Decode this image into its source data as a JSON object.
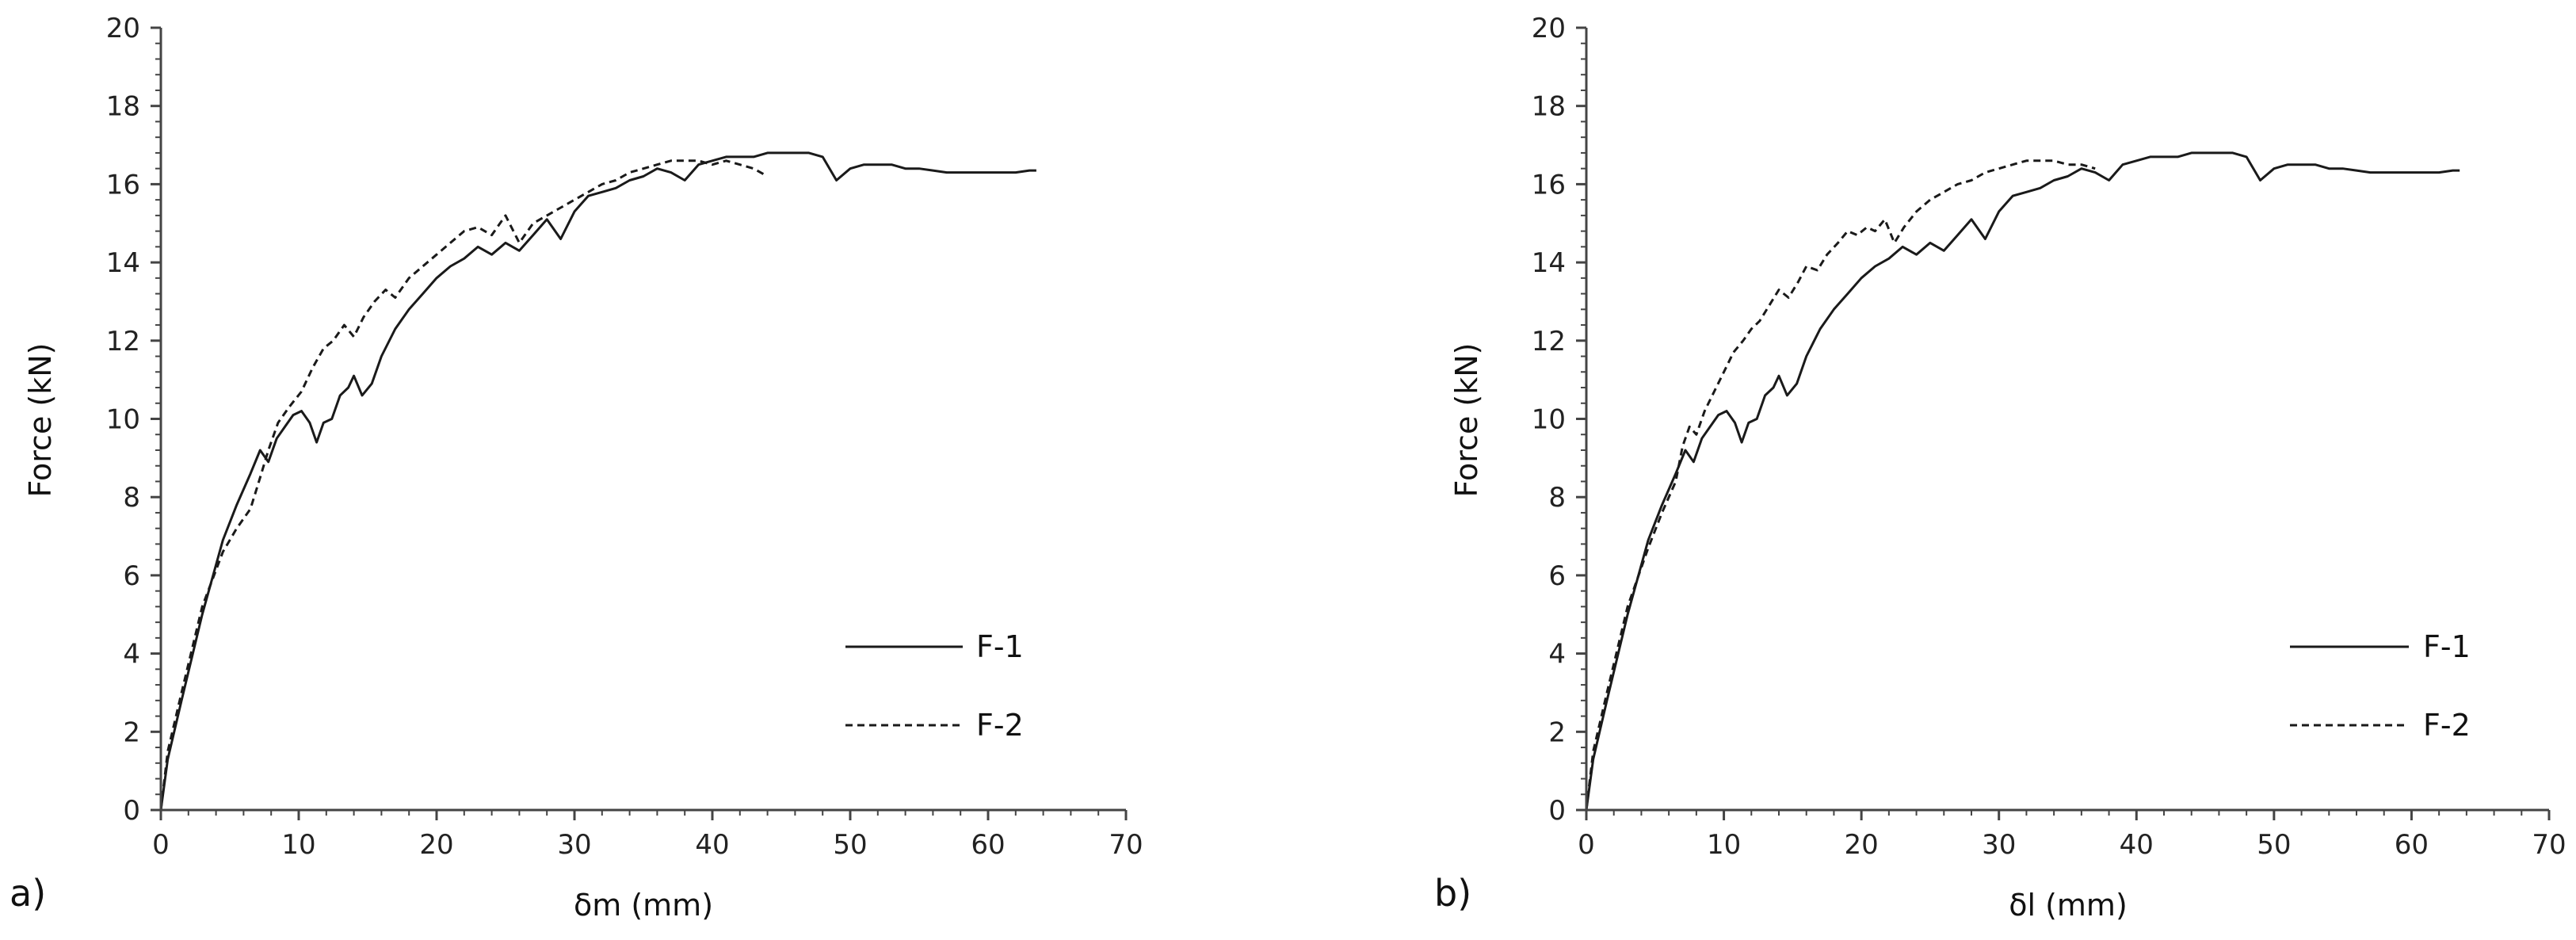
{
  "chart_data": [
    {
      "type": "line",
      "panel_label": "a)",
      "title": "",
      "xlabel": "δm (mm)",
      "ylabel": "Force (kN)",
      "xlim": [
        0,
        70
      ],
      "ylim": [
        0,
        20
      ],
      "xticks": [
        0,
        10,
        20,
        30,
        40,
        50,
        60,
        70
      ],
      "yticks": [
        0,
        2,
        4,
        6,
        8,
        10,
        12,
        14,
        16,
        18,
        20
      ],
      "grid": false,
      "legend": "bottom-right",
      "series": [
        {
          "name": "F-1",
          "style": "solid",
          "color": "#1a1a1a",
          "x": [
            0,
            0.5,
            1.5,
            3,
            4.5,
            5.5,
            6.5,
            7.2,
            7.8,
            8.4,
            9,
            9.6,
            10.2,
            10.8,
            11.3,
            11.8,
            12.4,
            13,
            13.6,
            14,
            14.6,
            15.3,
            16,
            17,
            18,
            19,
            20,
            21,
            22,
            23,
            24,
            25,
            26,
            27,
            28,
            29,
            30,
            31,
            32,
            33,
            34,
            35,
            36,
            37,
            38,
            39,
            40,
            41,
            42,
            43,
            44,
            45,
            46,
            47,
            48,
            49,
            50,
            51,
            52,
            53,
            54,
            55,
            56,
            57,
            58,
            59,
            60,
            61,
            62,
            63,
            63.5
          ],
          "y": [
            0,
            1.3,
            2.8,
            5.0,
            6.9,
            7.8,
            8.6,
            9.2,
            8.9,
            9.5,
            9.8,
            10.1,
            10.2,
            9.9,
            9.4,
            9.9,
            10.0,
            10.6,
            10.8,
            11.1,
            10.6,
            10.9,
            11.6,
            12.3,
            12.8,
            13.2,
            13.6,
            13.9,
            14.1,
            14.4,
            14.2,
            14.5,
            14.3,
            14.7,
            15.1,
            14.6,
            15.3,
            15.7,
            15.8,
            15.9,
            16.1,
            16.2,
            16.4,
            16.3,
            16.1,
            16.5,
            16.6,
            16.7,
            16.7,
            16.7,
            16.8,
            16.8,
            16.8,
            16.8,
            16.7,
            16.1,
            16.4,
            16.5,
            16.5,
            16.5,
            16.4,
            16.4,
            16.35,
            16.3,
            16.3,
            16.3,
            16.3,
            16.3,
            16.3,
            16.35,
            16.35
          ]
        },
        {
          "name": "F-2",
          "style": "dashed",
          "color": "#1a1a1a",
          "x": [
            0,
            0.5,
            1.5,
            3,
            4.5,
            5.5,
            6.5,
            7.2,
            7.8,
            8.5,
            9.3,
            10.2,
            11,
            11.8,
            12.5,
            13.3,
            14,
            14.7,
            15.5,
            16.3,
            17,
            18,
            19,
            20,
            21,
            22,
            23,
            24,
            25,
            26,
            27,
            28,
            29,
            30,
            31,
            32,
            33,
            34,
            35,
            36,
            37,
            38,
            39,
            40,
            41,
            42,
            43,
            44
          ],
          "y": [
            0,
            1.5,
            3.0,
            5.2,
            6.6,
            7.2,
            7.7,
            8.5,
            9.2,
            9.9,
            10.3,
            10.7,
            11.3,
            11.8,
            12.0,
            12.4,
            12.1,
            12.6,
            13.0,
            13.3,
            13.1,
            13.6,
            13.9,
            14.2,
            14.5,
            14.8,
            14.9,
            14.7,
            15.2,
            14.5,
            15.0,
            15.2,
            15.4,
            15.6,
            15.8,
            16.0,
            16.1,
            16.3,
            16.4,
            16.5,
            16.6,
            16.6,
            16.6,
            16.5,
            16.6,
            16.5,
            16.4,
            16.2
          ]
        }
      ]
    },
    {
      "type": "line",
      "panel_label": "b)",
      "title": "",
      "xlabel": "δl (mm)",
      "ylabel": "Force (kN)",
      "xlim": [
        0,
        70
      ],
      "ylim": [
        0,
        20
      ],
      "xticks": [
        0,
        10,
        20,
        30,
        40,
        50,
        60,
        70
      ],
      "yticks": [
        0,
        2,
        4,
        6,
        8,
        10,
        12,
        14,
        16,
        18,
        20
      ],
      "grid": false,
      "legend": "bottom-right",
      "series": [
        {
          "name": "F-1",
          "style": "solid",
          "color": "#1a1a1a",
          "x": [
            0,
            0.5,
            1.5,
            3,
            4.5,
            5.5,
            6.5,
            7.2,
            7.8,
            8.4,
            9,
            9.6,
            10.2,
            10.8,
            11.3,
            11.8,
            12.4,
            13,
            13.6,
            14,
            14.6,
            15.3,
            16,
            17,
            18,
            19,
            20,
            21,
            22,
            23,
            24,
            25,
            26,
            27,
            28,
            29,
            30,
            31,
            32,
            33,
            34,
            35,
            36,
            37,
            38,
            39,
            40,
            41,
            42,
            43,
            44,
            45,
            46,
            47,
            48,
            49,
            50,
            51,
            52,
            53,
            54,
            55,
            56,
            57,
            58,
            59,
            60,
            61,
            62,
            63,
            63.5
          ],
          "y": [
            0,
            1.3,
            2.8,
            5.0,
            6.9,
            7.8,
            8.6,
            9.2,
            8.9,
            9.5,
            9.8,
            10.1,
            10.2,
            9.9,
            9.4,
            9.9,
            10.0,
            10.6,
            10.8,
            11.1,
            10.6,
            10.9,
            11.6,
            12.3,
            12.8,
            13.2,
            13.6,
            13.9,
            14.1,
            14.4,
            14.2,
            14.5,
            14.3,
            14.7,
            15.1,
            14.6,
            15.3,
            15.7,
            15.8,
            15.9,
            16.1,
            16.2,
            16.4,
            16.3,
            16.1,
            16.5,
            16.6,
            16.7,
            16.7,
            16.7,
            16.8,
            16.8,
            16.8,
            16.8,
            16.7,
            16.1,
            16.4,
            16.5,
            16.5,
            16.5,
            16.4,
            16.4,
            16.35,
            16.3,
            16.3,
            16.3,
            16.3,
            16.3,
            16.3,
            16.35,
            16.35
          ]
        },
        {
          "name": "F-2",
          "style": "dashed",
          "color": "#1a1a1a",
          "x": [
            0,
            0.5,
            1.5,
            3,
            4.5,
            5.5,
            6.5,
            7,
            7.5,
            8,
            8.6,
            9.3,
            10,
            10.7,
            11.4,
            12,
            12.6,
            13.3,
            14,
            14.7,
            15.4,
            16,
            16.8,
            17.5,
            18.3,
            19,
            19.7,
            20.4,
            21,
            21.7,
            22.4,
            23.1,
            24,
            25,
            26,
            27,
            28,
            29,
            30,
            31,
            32,
            33,
            34,
            35,
            36,
            37
          ],
          "y": [
            0,
            1.5,
            3.0,
            5.2,
            6.7,
            7.6,
            8.4,
            9.3,
            9.8,
            9.6,
            10.2,
            10.7,
            11.2,
            11.7,
            12.0,
            12.3,
            12.5,
            12.9,
            13.3,
            13.1,
            13.5,
            13.9,
            13.8,
            14.2,
            14.5,
            14.8,
            14.7,
            14.9,
            14.8,
            15.1,
            14.5,
            14.9,
            15.3,
            15.6,
            15.8,
            16.0,
            16.1,
            16.3,
            16.4,
            16.5,
            16.6,
            16.6,
            16.6,
            16.5,
            16.5,
            16.4
          ]
        }
      ]
    }
  ]
}
